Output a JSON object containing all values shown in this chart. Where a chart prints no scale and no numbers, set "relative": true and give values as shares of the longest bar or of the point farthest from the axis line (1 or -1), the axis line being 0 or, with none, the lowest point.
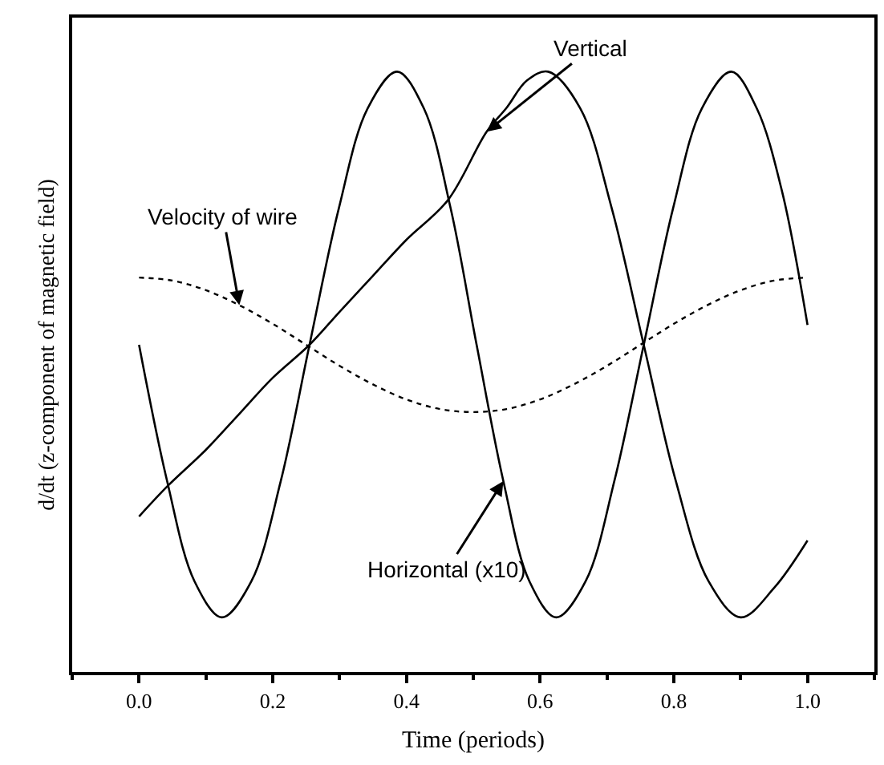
{
  "chart_data": {
    "type": "line",
    "xlabel": "Time (periods)",
    "ylabel": "d/dt (z-component of magnetic field)",
    "relative": true,
    "xlim": [
      -0.1,
      1.1
    ],
    "xticks": [
      {
        "value": 0,
        "label": "0.0"
      },
      0.2,
      0.4,
      0.6,
      0.8,
      {
        "value": 1,
        "label": "1.0"
      }
    ],
    "marker": "none",
    "series": [
      {
        "name": "Horizontal (x10)",
        "color": "#000000",
        "line_style": "solid",
        "x": [
          0,
          0.042,
          0.083,
          0.124,
          0.168,
          0.212,
          0.255,
          0.299,
          0.342,
          0.386,
          0.426,
          0.466,
          0.505,
          0.545,
          0.584,
          0.624,
          0.668,
          0.711,
          0.755,
          0.799,
          0.842,
          0.886,
          0.924,
          0.962,
          1.0
        ],
        "values": [
          0.545,
          0.318,
          0.151,
          0.091,
          0.151,
          0.318,
          0.545,
          0.773,
          0.939,
          1.0,
          0.939,
          0.773,
          0.545,
          0.318,
          0.151,
          0.091,
          0.151,
          0.318,
          0.545,
          0.773,
          0.939,
          1.0,
          0.939,
          0.8,
          0.578
        ]
      },
      {
        "name": "Vertical",
        "color": "#000000",
        "line_style": "solid",
        "x": [
          0,
          0.043,
          0.1,
          0.15,
          0.2,
          0.255,
          0.3,
          0.35,
          0.4,
          0.462,
          0.52,
          0.55,
          0.58,
          0.612,
          0.66,
          0.707,
          0.755,
          0.803,
          0.852,
          0.9,
          0.95,
          1.0
        ],
        "values": [
          0.259,
          0.31,
          0.37,
          0.43,
          0.49,
          0.545,
          0.6,
          0.66,
          0.72,
          0.786,
          0.9,
          0.94,
          0.985,
          1.0,
          0.939,
          0.773,
          0.545,
          0.318,
          0.151,
          0.091,
          0.14,
          0.219
        ]
      },
      {
        "name": "Velocity of wire",
        "color": "#000000",
        "line_style": "dotted",
        "x": [
          0,
          0.05,
          0.1,
          0.15,
          0.2,
          0.25,
          0.3,
          0.35,
          0.4,
          0.45,
          0.5,
          0.55,
          0.6,
          0.65,
          0.7,
          0.75,
          0.8,
          0.85,
          0.9,
          0.95,
          1.0
        ],
        "values": [
          0.657,
          0.652,
          0.636,
          0.611,
          0.58,
          0.545,
          0.51,
          0.479,
          0.454,
          0.438,
          0.433,
          0.438,
          0.454,
          0.479,
          0.51,
          0.545,
          0.58,
          0.611,
          0.636,
          0.652,
          0.657
        ]
      }
    ]
  }
}
